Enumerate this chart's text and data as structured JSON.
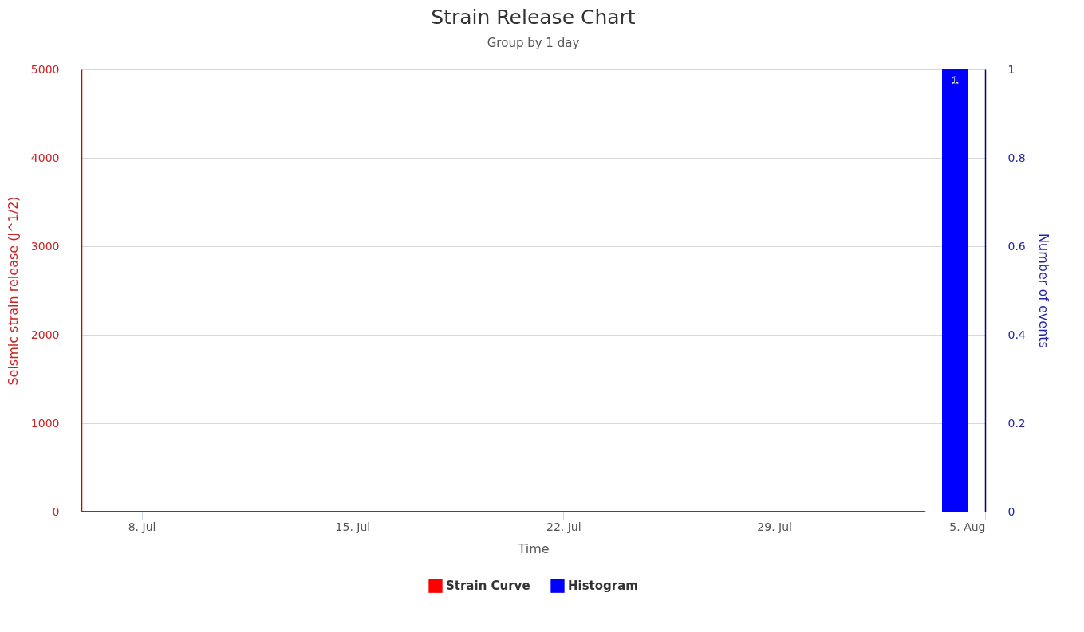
{
  "chart_data": {
    "type": "line",
    "title": "Strain Release Chart",
    "subtitle": "Group by 1 day",
    "xlabel": "Time",
    "ylabel": "Seismic strain release (J^1/2)",
    "y2label": "Number of events",
    "xlim": [
      "--07-06",
      "--08-05"
    ],
    "xticks": [
      {
        "value": "--07-08",
        "label": "8. Jul"
      },
      {
        "value": "--07-15",
        "label": "15. Jul"
      },
      {
        "value": "--07-22",
        "label": "22. Jul"
      },
      {
        "value": "--07-29",
        "label": "29. Jul"
      },
      {
        "value": "--08-05",
        "label": "5. Aug"
      }
    ],
    "ylim": [
      0,
      5000
    ],
    "yticks": [
      0,
      1000,
      2000,
      3000,
      4000,
      5000
    ],
    "y2lim": [
      0,
      1
    ],
    "y2ticks": [
      0,
      0.2,
      0.4,
      0.6,
      0.8,
      1
    ],
    "grid": "y",
    "legend": "bottom",
    "series": [
      {
        "name": "Strain Curve",
        "color": "#ff0000",
        "x": [
          "--07-06",
          "--08-03"
        ],
        "values": [
          0,
          0
        ]
      },
      {
        "name": "Histogram",
        "type": "bar",
        "axis": "y2",
        "color": "#0000ff",
        "x": [
          "--08-04"
        ],
        "values": [
          1
        ],
        "value_labels": [
          "1"
        ]
      }
    ]
  }
}
